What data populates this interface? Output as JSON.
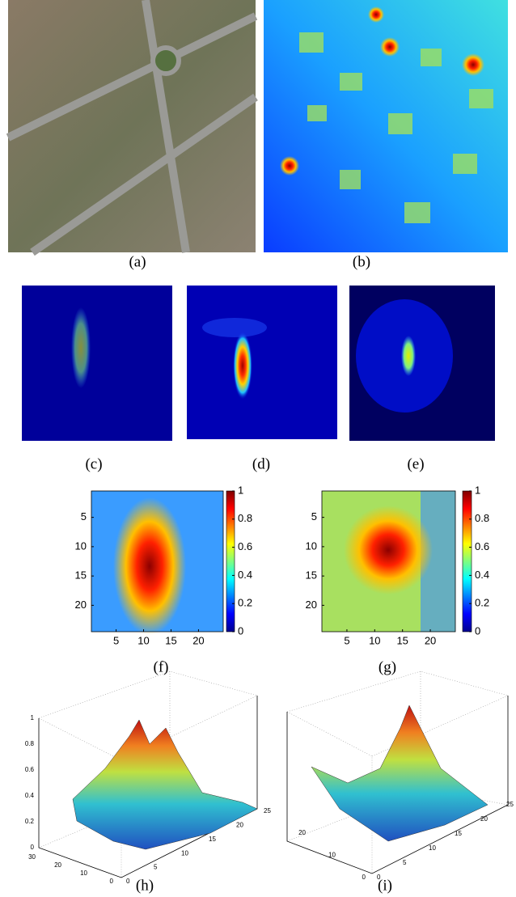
{
  "panels": {
    "a": "(a)",
    "b": "(b)",
    "c": "(c)",
    "d": "(d)",
    "e": "(e)"
  },
  "heatmap_f": {
    "label": "(f)",
    "yticks": [
      5,
      10,
      15,
      20
    ],
    "xticks": [
      5,
      10,
      15,
      20
    ],
    "colorbar_ticks": [
      0,
      0.2,
      0.4,
      0.6,
      0.8,
      1
    ]
  },
  "heatmap_g": {
    "label": "(g)",
    "yticks": [
      5,
      10,
      15,
      20
    ],
    "xticks": [
      5,
      10,
      15,
      20
    ],
    "colorbar_ticks": [
      0,
      0.2,
      0.4,
      0.6,
      0.8,
      1
    ]
  },
  "surface_h": {
    "label": "(h)",
    "zticks": [
      0,
      0.2,
      0.4,
      0.6,
      0.8,
      1
    ],
    "yticks": [
      0,
      10,
      20,
      30
    ],
    "xticks": [
      0,
      5,
      10,
      15,
      20,
      25
    ]
  },
  "surface_i": {
    "label": "(i)",
    "yticks": [
      0,
      10,
      20
    ],
    "xticks": [
      0,
      5,
      10,
      15,
      20,
      25
    ]
  }
}
